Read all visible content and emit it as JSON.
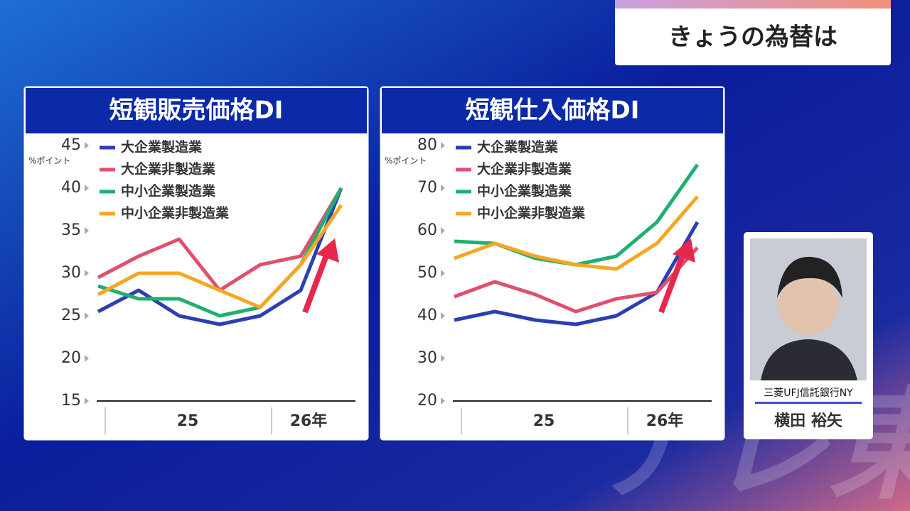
{
  "header": {
    "title": "きょうの為替は"
  },
  "person": {
    "company": "三菱UFJ信託銀行NY",
    "name": "横田 裕矢"
  },
  "chart_data": [
    {
      "type": "line",
      "title": "短観販売価格DI",
      "y_unit": "%ポイント",
      "categories": [
        null,
        null,
        null,
        null,
        null,
        null,
        null
      ],
      "x_groups": [
        "25",
        "26年"
      ],
      "ylim": [
        15,
        45
      ],
      "yticks": [
        15,
        20,
        25,
        30,
        35,
        40,
        45
      ],
      "series": [
        {
          "name": "大企業製造業",
          "color": "#2b3fb3",
          "values": [
            25.5,
            28,
            25,
            24,
            25,
            28,
            40
          ]
        },
        {
          "name": "大企業非製造業",
          "color": "#e0506e",
          "values": [
            29.5,
            32,
            34,
            28,
            31,
            32,
            40
          ]
        },
        {
          "name": "中小企業製造業",
          "color": "#1fb070",
          "values": [
            28.5,
            27,
            27,
            25,
            26,
            31,
            40
          ]
        },
        {
          "name": "中小企業非製造業",
          "color": "#f5a623",
          "values": [
            27.5,
            30,
            30,
            28,
            26,
            31,
            38
          ]
        }
      ]
    },
    {
      "type": "line",
      "title": "短観仕入価格DI",
      "y_unit": "%ポイント",
      "categories": [
        null,
        null,
        null,
        null,
        null,
        null,
        null
      ],
      "x_groups": [
        "25",
        "26年"
      ],
      "ylim": [
        20,
        80
      ],
      "yticks": [
        20,
        30,
        40,
        50,
        60,
        70,
        80
      ],
      "series": [
        {
          "name": "大企業製造業",
          "color": "#2b3fb3",
          "values": [
            39,
            41,
            39,
            38,
            40,
            45.5,
            62
          ]
        },
        {
          "name": "大企業非製造業",
          "color": "#e0506e",
          "values": [
            44.5,
            48,
            45,
            41,
            44,
            45.5,
            56
          ]
        },
        {
          "name": "中小企業製造業",
          "color": "#1fb070",
          "values": [
            57.5,
            57,
            53.5,
            52,
            54,
            62,
            75.5
          ]
        },
        {
          "name": "中小企業非製造業",
          "color": "#f5a623",
          "values": [
            53.5,
            57,
            54,
            52,
            51,
            57,
            68
          ]
        }
      ]
    }
  ]
}
